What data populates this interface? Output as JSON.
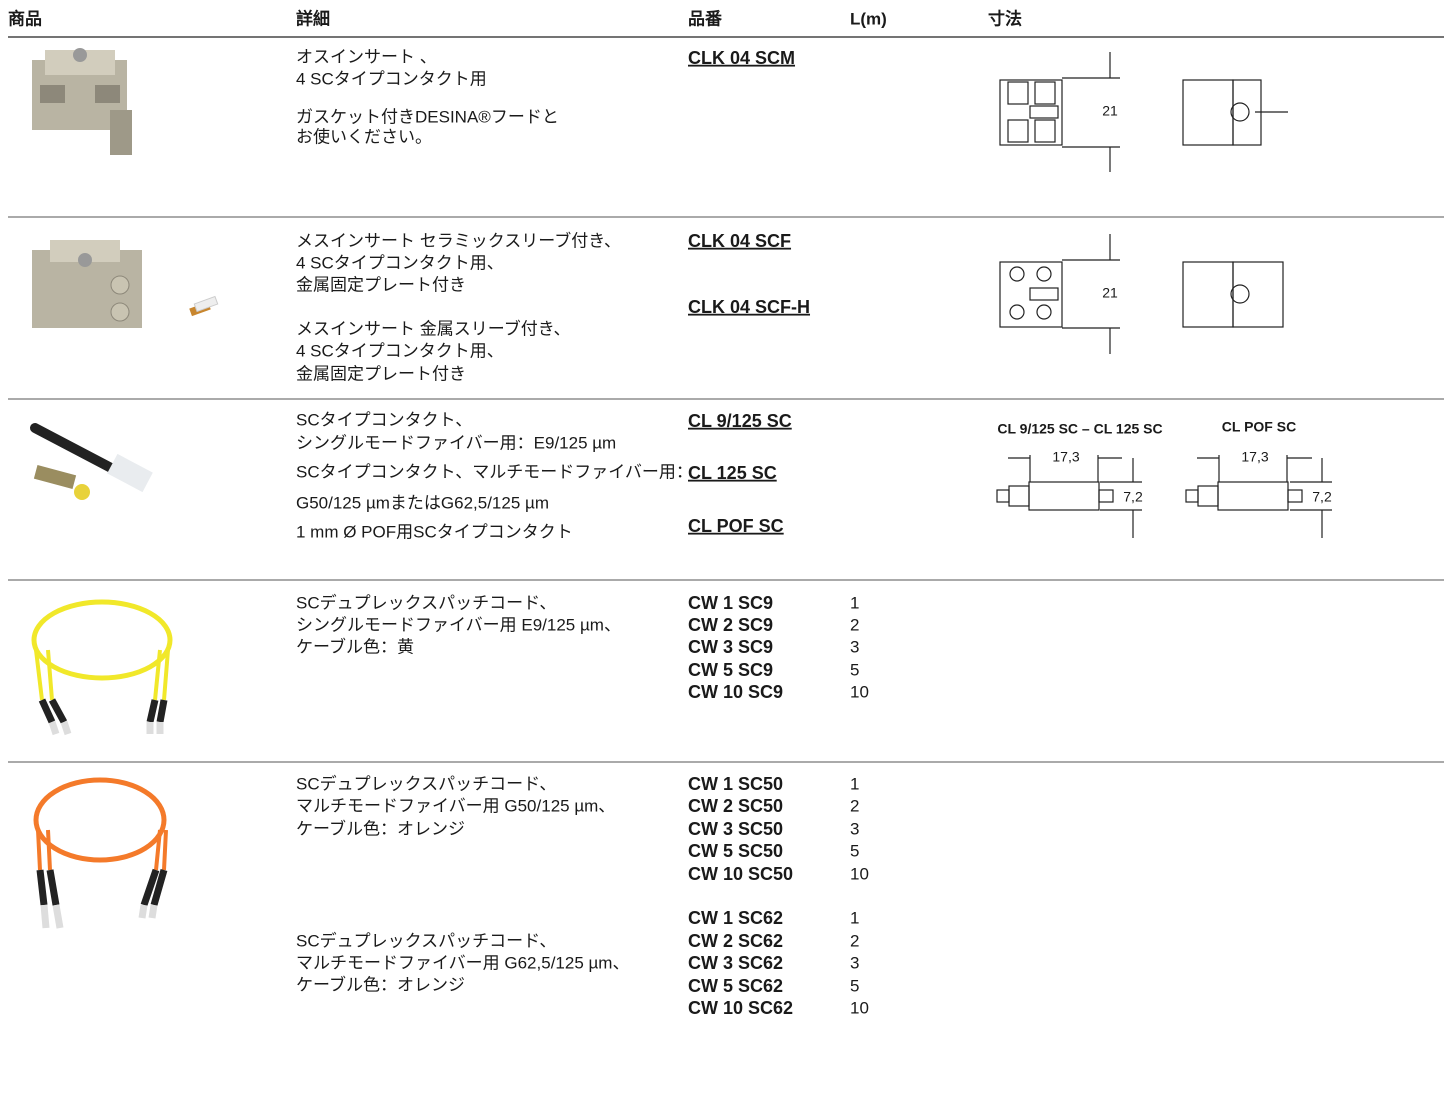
{
  "header": {
    "columns": [
      "商品",
      "詳細",
      "品番",
      "L(m)",
      "寸法"
    ]
  },
  "rows": [
    {
      "entries": [
        {
          "description": [
            "オスインサート 、",
            "4 SCタイプコンタクト用",
            "ガスケット付きDESINA®フードと",
            "お使いください。"
          ],
          "products": [
            {
              "code": "CLK 04 SCM"
            }
          ]
        }
      ],
      "dimensions": [
        "21"
      ]
    },
    {
      "entries": [
        {
          "description": [
            "メスインサート セラミックスリーブ付き、",
            "4 SCタイプコンタクト用、",
            "金属固定プレート付き"
          ],
          "products": [
            {
              "code": "CLK 04 SCF"
            }
          ]
        },
        {
          "description": [
            "メスインサート 金属スリーブ付き、",
            "4 SCタイプコンタクト用、",
            "金属固定プレート付き"
          ],
          "products": [
            {
              "code": "CLK 04 SCF-H"
            }
          ]
        }
      ],
      "dimensions": [
        "21"
      ]
    },
    {
      "entries": [
        {
          "description": [
            "SCタイプコンタクト、",
            "シングルモードファイバー用：E9/125 µm"
          ],
          "products": [
            {
              "code": "CL 9/125 SC"
            }
          ]
        },
        {
          "description": [
            "SCタイプコンタクト、マルチモードファイバー用：",
            "G50/125 µmまたはG62,5/125 µm"
          ],
          "products": [
            {
              "code": "CL 125 SC"
            }
          ]
        },
        {
          "description": [
            "1 mm Ø POF用SCタイプコンタクト"
          ],
          "products": [
            {
              "code": "CL POF SC"
            }
          ]
        }
      ],
      "dimensions": [
        "CL 9/125 SC – CL 125 SC",
        "CL POF SC",
        "17,3",
        "7,2",
        "17,3",
        "7,2"
      ]
    },
    {
      "entries": [
        {
          "description": [
            "SCデュプレックスパッチコード、",
            "シングルモードファイバー用 E9/125 µm、",
            "ケーブル色：黄"
          ],
          "products": [
            {
              "code": "CW 1 SC9",
              "length": 1
            },
            {
              "code": "CW 2 SC9",
              "length": 2
            },
            {
              "code": "CW 3 SC9",
              "length": 3
            },
            {
              "code": "CW 5 SC9",
              "length": 5
            },
            {
              "code": "CW 10 SC9",
              "length": 10
            }
          ]
        }
      ]
    },
    {
      "entries": [
        {
          "description": [
            "SCデュプレックスパッチコード、",
            "マルチモードファイバー用 G50/125 µm、",
            "ケーブル色：オレンジ"
          ],
          "products": [
            {
              "code": "CW 1 SC50",
              "length": 1
            },
            {
              "code": "CW 2 SC50",
              "length": 2
            },
            {
              "code": "CW 3 SC50",
              "length": 3
            },
            {
              "code": "CW 5 SC50",
              "length": 5
            },
            {
              "code": "CW 10 SC50",
              "length": 10
            }
          ]
        },
        {
          "description": [
            "SCデュプレックスパッチコード、",
            "マルチモードファイバー用 G62,5/125 µm、",
            "ケーブル色：オレンジ"
          ],
          "products": [
            {
              "code": "CW 1 SC62",
              "length": 1
            },
            {
              "code": "CW 2 SC62",
              "length": 2
            },
            {
              "code": "CW 3 SC62",
              "length": 3
            },
            {
              "code": "CW 5 SC62",
              "length": 5
            },
            {
              "code": "CW 10 SC62",
              "length": 10
            }
          ]
        }
      ]
    }
  ]
}
